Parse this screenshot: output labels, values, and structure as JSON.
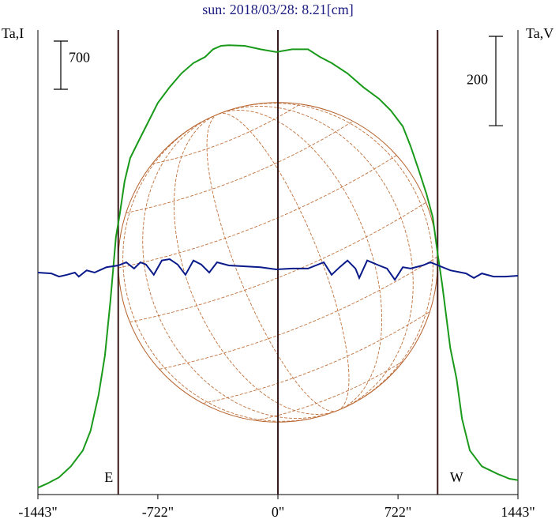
{
  "chart_data": {
    "type": "line",
    "title": "sun: 2018/03/28: 8.21[cm]",
    "y_label": "Ta,I",
    "y2_label": "Ta,V",
    "xlim": [
      -1443,
      1443
    ],
    "xticks": [
      {
        "value": -1443,
        "label": "-1443\""
      },
      {
        "value": -722,
        "label": "-722\""
      },
      {
        "value": 0,
        "label": "0\""
      },
      {
        "value": 722,
        "label": "722\""
      },
      {
        "value": 1443,
        "label": "1443\""
      }
    ],
    "ylim": [
      0,
      6750
    ],
    "y2lim": [
      -520,
      520
    ],
    "scale_bars": [
      {
        "value": 700,
        "axis": "y"
      },
      {
        "value": 200,
        "axis": "y2"
      }
    ],
    "markers": [
      {
        "x": -960,
        "label": "E"
      },
      {
        "x": 0
      },
      {
        "x": 960,
        "label": "W"
      }
    ],
    "series": [
      {
        "name": "Ta,I",
        "color": "#1a9a1a",
        "axis": "y",
        "x": [
          -1443,
          -1387,
          -1316,
          -1245,
          -1173,
          -1126,
          -1078,
          -1040,
          -1007,
          -974,
          -950,
          -922,
          -888,
          -841,
          -793,
          -722,
          -651,
          -580,
          -508,
          -437,
          -390,
          -342,
          -295,
          -200,
          -105,
          -10,
          86,
          181,
          252,
          323,
          418,
          513,
          608,
          679,
          751,
          798,
          846,
          893,
          931,
          960,
          988,
          1012,
          1036,
          1074,
          1107,
          1154,
          1226,
          1321,
          1392,
          1443
        ],
        "values": [
          100,
          160,
          250,
          410,
          640,
          930,
          1450,
          2020,
          2820,
          3740,
          4090,
          4550,
          4890,
          5120,
          5350,
          5690,
          5920,
          6120,
          6270,
          6360,
          6470,
          6520,
          6530,
          6520,
          6470,
          6430,
          6470,
          6470,
          6360,
          6270,
          6120,
          5920,
          5750,
          5580,
          5350,
          5060,
          4720,
          4370,
          4030,
          3510,
          3050,
          2590,
          2130,
          1680,
          1100,
          640,
          410,
          300,
          230,
          210
        ]
      },
      {
        "name": "Ta,V",
        "color": "#0a1a8a",
        "axis": "y2",
        "x": [
          -1443,
          -1363,
          -1316,
          -1268,
          -1221,
          -1197,
          -1150,
          -1102,
          -1031,
          -960,
          -912,
          -865,
          -827,
          -793,
          -746,
          -698,
          -651,
          -603,
          -556,
          -508,
          -461,
          -413,
          -366,
          -295,
          -200,
          -105,
          -10,
          86,
          181,
          276,
          323,
          371,
          418,
          466,
          489,
          537,
          608,
          656,
          703,
          751,
          798,
          869,
          917,
          964,
          1036,
          1131,
          1178,
          1226,
          1297,
          1368,
          1443
        ],
        "values": [
          -23,
          -25,
          -32,
          -28,
          -23,
          -32,
          -18,
          -23,
          -11,
          -7,
          0,
          -14,
          0,
          -5,
          -28,
          4,
          7,
          -5,
          -28,
          4,
          -5,
          -23,
          0,
          -7,
          -9,
          -11,
          -16,
          -14,
          -14,
          0,
          -28,
          -11,
          4,
          -14,
          -35,
          4,
          -7,
          -14,
          -39,
          -11,
          -14,
          -7,
          0,
          -7,
          -18,
          -25,
          -35,
          -25,
          -32,
          -32,
          -30
        ]
      }
    ]
  }
}
